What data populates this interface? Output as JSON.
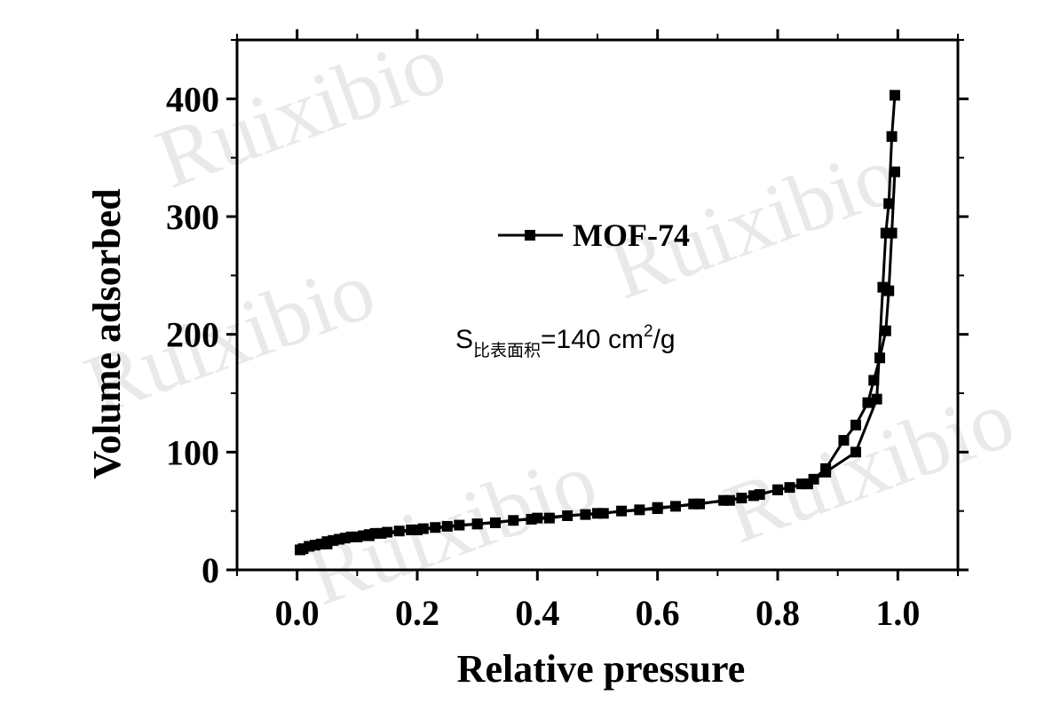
{
  "watermark": {
    "text": "Ruixibio"
  },
  "chart_data": {
    "type": "line",
    "title": "",
    "xlabel": "Relative pressure",
    "ylabel": "Volume adsorbed",
    "xlim": [
      -0.1,
      1.1
    ],
    "ylim": [
      0,
      450
    ],
    "xticks": [
      "0.0",
      "0.2",
      "0.4",
      "0.6",
      "0.8",
      "1.0"
    ],
    "yticks": [
      "0",
      "100",
      "200",
      "300",
      "400"
    ],
    "grid": false,
    "legend_position": "upper-center",
    "annotation": {
      "main": "S",
      "subscript": "比表面积",
      "value": "=140 cm",
      "superscript": "2",
      "unit": "/g"
    },
    "series": [
      {
        "name": "MOF-74",
        "color": "#000000",
        "marker": "square",
        "x": [
          0.005,
          0.01,
          0.02,
          0.03,
          0.04,
          0.05,
          0.06,
          0.07,
          0.08,
          0.09,
          0.1,
          0.11,
          0.12,
          0.13,
          0.14,
          0.15,
          0.17,
          0.19,
          0.21,
          0.23,
          0.25,
          0.27,
          0.3,
          0.33,
          0.36,
          0.39,
          0.42,
          0.45,
          0.48,
          0.51,
          0.54,
          0.57,
          0.6,
          0.63,
          0.67,
          0.71,
          0.74,
          0.77,
          0.8,
          0.82,
          0.84,
          0.86,
          0.88,
          0.91,
          0.93,
          0.95,
          0.96,
          0.97,
          0.98,
          0.985,
          0.99,
          0.995
        ],
        "y": [
          17,
          18,
          20,
          21,
          22,
          24,
          25,
          26,
          27,
          28,
          28,
          29,
          30,
          31,
          31,
          32,
          33,
          34,
          35,
          36,
          37,
          38,
          39,
          40,
          42,
          43,
          44,
          46,
          47,
          48,
          50,
          51,
          53,
          54,
          56,
          59,
          61,
          64,
          68,
          70,
          73,
          77,
          86,
          110,
          123,
          142,
          161,
          180,
          203,
          237,
          286,
          338
        ],
        "x_desorption": [
          0.995,
          0.99,
          0.985,
          0.98,
          0.975,
          0.965,
          0.93,
          0.88,
          0.85,
          0.8,
          0.76,
          0.72,
          0.66,
          0.6,
          0.5,
          0.4,
          0.3,
          0.2,
          0.12,
          0.05
        ],
        "y_desorption": [
          403,
          368,
          311,
          286,
          240,
          145,
          100,
          83,
          73,
          68,
          63,
          59,
          56,
          52,
          48,
          44,
          39,
          34,
          29,
          22
        ]
      }
    ]
  }
}
